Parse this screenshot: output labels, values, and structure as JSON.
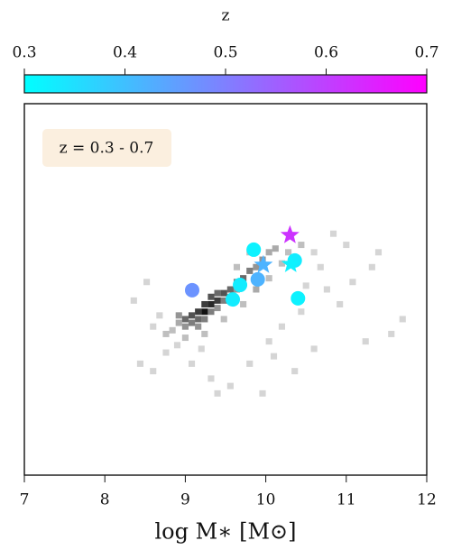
{
  "chart_data": {
    "type": "scatter",
    "colorbar": {
      "label": "z",
      "clim": [
        0.3,
        0.7
      ],
      "cticks": [
        0.3,
        0.4,
        0.5,
        0.6,
        0.7
      ],
      "colormap": [
        "#00ffff",
        "#ff00ff"
      ]
    },
    "annotation": "z = 0.3 - 0.7",
    "x_label": "log M∗ [M⊙]",
    "xlim": [
      7,
      12
    ],
    "xticks": [
      7,
      8,
      9,
      10,
      11,
      12
    ],
    "ylim": [
      0,
      1
    ],
    "series": [
      {
        "marker": "circle",
        "x": [
          9.085,
          9.85,
          9.68,
          9.59,
          9.9,
          10.36,
          10.4
        ],
        "y": [
          0.498,
          0.607,
          0.512,
          0.473,
          0.527,
          0.578,
          0.476
        ],
        "z": [
          0.47,
          0.32,
          0.33,
          0.33,
          0.42,
          0.33,
          0.32
        ]
      },
      {
        "marker": "star",
        "x": [
          10.3,
          9.97,
          10.31
        ],
        "y": [
          0.646,
          0.566,
          0.568
        ],
        "z": [
          0.62,
          0.42,
          0.32
        ]
      }
    ],
    "hist2d": {
      "xbin": 0.08,
      "ybin": 0.017,
      "vmax": 10,
      "x": [
        9.0,
        9.08,
        9.16,
        9.24,
        9.24,
        9.32,
        9.32,
        9.4,
        9.4,
        9.48,
        9.56,
        9.64,
        9.72,
        9.8,
        9.88,
        9.96,
        10.04,
        10.12,
        9.16,
        9.08,
        9.0,
        8.92,
        8.92,
        9.16,
        9.32,
        9.48,
        9.24,
        9.4,
        9.56,
        9.64,
        8.84,
        8.76,
        9.0,
        9.24,
        9.48,
        9.72,
        9.88,
        10.04,
        10.2,
        10.28,
        10.44,
        10.6,
        10.68,
        9.8,
        9.64,
        8.68,
        8.6,
        8.44,
        8.6,
        8.76,
        9.08,
        9.32,
        9.56,
        9.8,
        10.04,
        10.2,
        10.44,
        10.76,
        10.92,
        11.08,
        11.32,
        11.56,
        11.24,
        10.6,
        10.36,
        9.96,
        9.4,
        8.36,
        8.52,
        11.0,
        11.4,
        10.84,
        10.1,
        9.2,
        8.9,
        11.7,
        10.5
      ],
      "y": [
        0.42,
        0.43,
        0.44,
        0.44,
        0.46,
        0.46,
        0.48,
        0.47,
        0.49,
        0.49,
        0.5,
        0.52,
        0.53,
        0.55,
        0.56,
        0.58,
        0.6,
        0.61,
        0.42,
        0.41,
        0.4,
        0.41,
        0.43,
        0.4,
        0.44,
        0.47,
        0.42,
        0.45,
        0.48,
        0.5,
        0.39,
        0.38,
        0.37,
        0.38,
        0.42,
        0.46,
        0.5,
        0.53,
        0.57,
        0.6,
        0.62,
        0.6,
        0.56,
        0.6,
        0.56,
        0.43,
        0.4,
        0.3,
        0.28,
        0.33,
        0.3,
        0.26,
        0.24,
        0.3,
        0.36,
        0.4,
        0.44,
        0.5,
        0.46,
        0.52,
        0.56,
        0.38,
        0.36,
        0.34,
        0.28,
        0.22,
        0.22,
        0.47,
        0.52,
        0.62,
        0.6,
        0.65,
        0.32,
        0.34,
        0.35,
        0.42,
        0.51
      ],
      "counts": [
        6,
        7,
        8,
        10,
        8,
        9,
        7,
        8,
        6,
        7,
        6,
        5,
        6,
        5,
        4,
        4,
        3,
        3,
        6,
        5,
        4,
        3,
        4,
        4,
        5,
        5,
        5,
        4,
        4,
        4,
        2,
        2,
        2,
        2,
        2,
        2,
        3,
        2,
        2,
        2,
        2,
        1,
        1,
        2,
        2,
        1,
        1,
        1,
        1,
        1,
        1,
        1,
        1,
        1,
        1,
        1,
        1,
        1,
        1,
        1,
        1,
        1,
        1,
        1,
        1,
        1,
        1,
        1,
        1,
        1,
        1,
        1,
        1,
        1,
        1,
        1,
        1
      ]
    }
  }
}
